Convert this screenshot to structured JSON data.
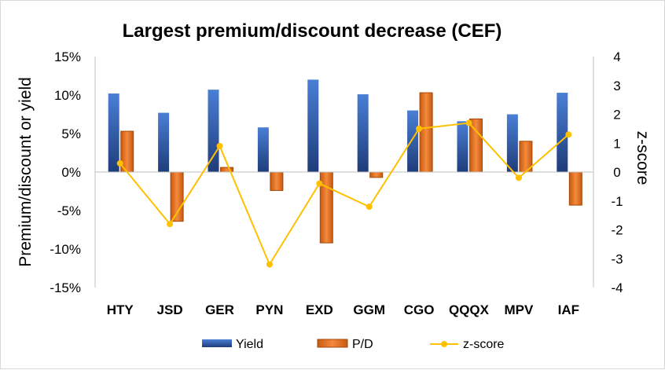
{
  "chart_data": {
    "type": "bar",
    "title": "Largest premium/discount decrease (CEF)",
    "categories": [
      "HTY",
      "JSD",
      "GER",
      "PYN",
      "EXD",
      "GGM",
      "CGO",
      "QQQX",
      "MPV",
      "IAF"
    ],
    "series": [
      {
        "name": "Yield",
        "type": "bar",
        "axis": "left",
        "unit": "%",
        "color": "#4472C4",
        "values": [
          10.2,
          7.7,
          10.7,
          5.8,
          12.0,
          10.1,
          8.0,
          6.6,
          7.5,
          10.3
        ]
      },
      {
        "name": "P/D",
        "type": "bar",
        "axis": "left",
        "unit": "%",
        "color": "#ED7D31",
        "values": [
          5.3,
          -6.4,
          0.6,
          -2.4,
          -9.2,
          -0.7,
          10.3,
          6.9,
          4.0,
          -4.3
        ]
      },
      {
        "name": "z-score",
        "type": "line",
        "axis": "right",
        "color": "#FFC000",
        "values": [
          0.3,
          -1.8,
          0.9,
          -3.2,
          -0.4,
          -1.2,
          1.5,
          1.7,
          -0.2,
          1.3
        ]
      }
    ],
    "ylabel": "Premium/discount or yield",
    "y2label": "z-score",
    "ylim": [
      -15,
      15
    ],
    "y_ticks": [
      "15%",
      "10%",
      "5%",
      "0%",
      "-5%",
      "-10%",
      "-15%"
    ],
    "y2lim": [
      -4,
      4
    ],
    "y2_ticks": [
      "4",
      "3",
      "2",
      "1",
      "0",
      "-1",
      "-2",
      "-3",
      "-4"
    ],
    "grid": false,
    "legend": "bottom"
  }
}
